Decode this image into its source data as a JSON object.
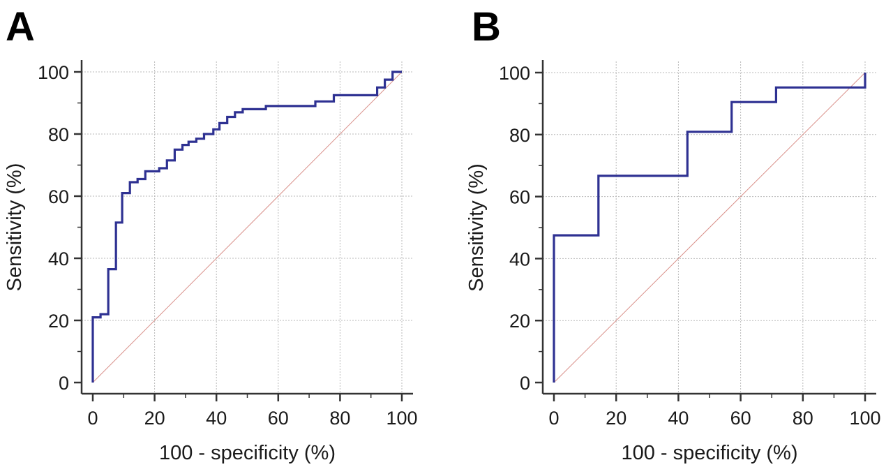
{
  "panels": [
    {
      "letter": "A",
      "x_label": "100 - specificity (%)",
      "y_label": "Sensitivity (%)"
    },
    {
      "letter": "B",
      "x_label": "100 - specificity (%)",
      "y_label": "Sensitivity (%)"
    }
  ],
  "colors": {
    "roc_curve": "#2e3192",
    "reference_line": "#d9908a",
    "axis": "#333333"
  },
  "chart_data": [
    {
      "type": "line",
      "panel": "A",
      "title": "",
      "xlabel": "100 - specificity (%)",
      "ylabel": "Sensitivity (%)",
      "xlim": [
        0,
        100
      ],
      "ylim": [
        0,
        100
      ],
      "xticks": [
        0,
        20,
        40,
        60,
        80,
        100
      ],
      "yticks": [
        0,
        20,
        40,
        60,
        80,
        100
      ],
      "grid": true,
      "series": [
        {
          "points": [
            [
              0,
              0
            ],
            [
              0,
              21
            ],
            [
              2.5,
              21
            ],
            [
              2.5,
              22
            ],
            [
              5,
              22
            ],
            [
              5,
              36.5
            ],
            [
              7.5,
              36.5
            ],
            [
              7.5,
              51.5
            ],
            [
              9.5,
              51.5
            ],
            [
              9.5,
              61
            ],
            [
              12,
              61
            ],
            [
              12,
              64.5
            ],
            [
              14.5,
              64.5
            ],
            [
              14.5,
              65.5
            ],
            [
              17,
              65.5
            ],
            [
              17,
              68
            ],
            [
              21.5,
              68
            ],
            [
              21.5,
              69
            ],
            [
              24,
              69
            ],
            [
              24,
              71.5
            ],
            [
              26.5,
              71.5
            ],
            [
              26.5,
              75
            ],
            [
              29,
              75
            ],
            [
              29,
              76.5
            ],
            [
              31,
              76.5
            ],
            [
              31,
              77.5
            ],
            [
              33.5,
              77.5
            ],
            [
              33.5,
              78.5
            ],
            [
              36,
              78.5
            ],
            [
              36,
              80
            ],
            [
              39,
              80
            ],
            [
              39,
              81.5
            ],
            [
              41,
              81.5
            ],
            [
              41,
              83.5
            ],
            [
              43.5,
              83.5
            ],
            [
              43.5,
              85.5
            ],
            [
              46,
              85.5
            ],
            [
              46,
              87
            ],
            [
              48.5,
              87
            ],
            [
              48.5,
              88
            ],
            [
              56,
              88
            ],
            [
              56,
              89
            ],
            [
              72,
              89
            ],
            [
              72,
              90.5
            ],
            [
              78,
              90.5
            ],
            [
              78,
              92.5
            ],
            [
              92,
              92.5
            ],
            [
              92,
              95
            ],
            [
              94.5,
              95
            ],
            [
              94.5,
              97.5
            ],
            [
              97,
              97.5
            ],
            [
              97,
              100
            ],
            [
              100,
              100
            ]
          ]
        },
        {
          "points": [
            [
              0,
              0
            ],
            [
              100,
              100
            ]
          ]
        }
      ]
    },
    {
      "type": "line",
      "panel": "B",
      "title": "",
      "xlabel": "100 - specificity (%)",
      "ylabel": "Sensitivity (%)",
      "xlim": [
        0,
        100
      ],
      "ylim": [
        0,
        100
      ],
      "xticks": [
        0,
        20,
        40,
        60,
        80,
        100
      ],
      "yticks": [
        0,
        20,
        40,
        60,
        80,
        100
      ],
      "grid": true,
      "series": [
        {
          "points": [
            [
              0,
              0
            ],
            [
              0,
              47.5
            ],
            [
              14.3,
              47.5
            ],
            [
              14.3,
              66.7
            ],
            [
              42.9,
              66.7
            ],
            [
              42.9,
              80.9
            ],
            [
              57.1,
              80.9
            ],
            [
              57.1,
              90.5
            ],
            [
              71.4,
              90.5
            ],
            [
              71.4,
              95.2
            ],
            [
              100,
              95.2
            ],
            [
              100,
              100
            ]
          ]
        },
        {
          "points": [
            [
              0,
              0
            ],
            [
              100,
              100
            ]
          ]
        }
      ]
    }
  ]
}
